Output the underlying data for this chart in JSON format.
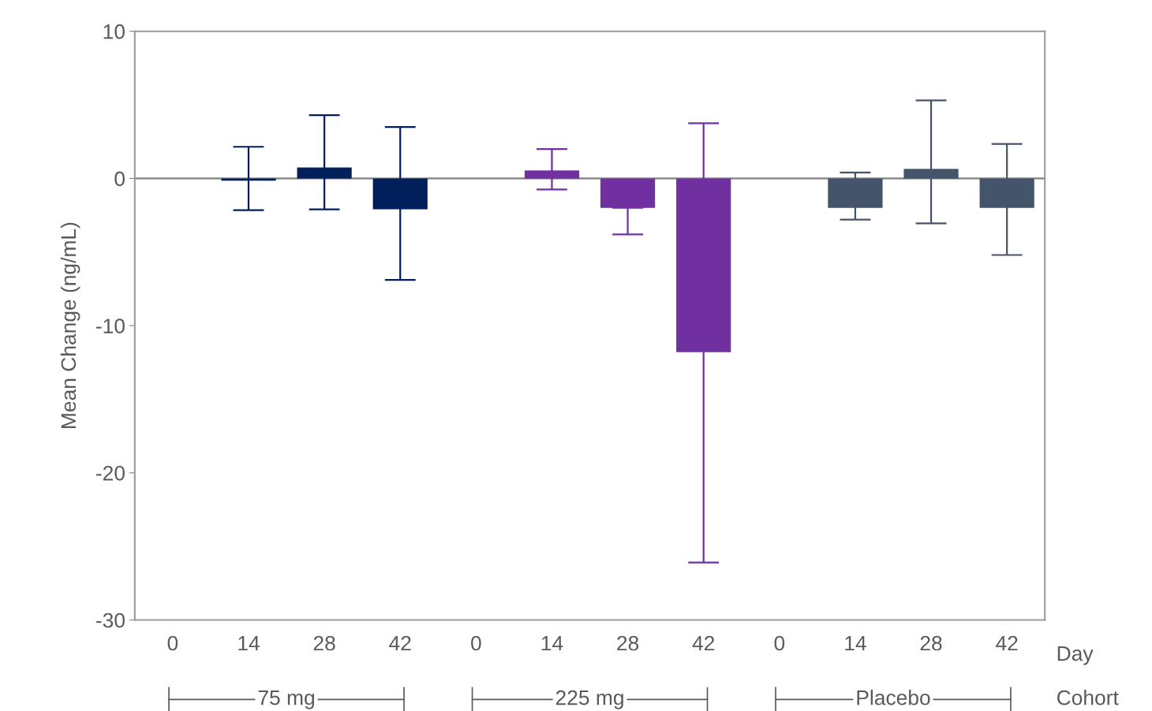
{
  "chart_data": {
    "type": "bar",
    "ylabel": "Mean Change (ng/mL)",
    "categories": [
      "0",
      "14",
      "28",
      "42",
      "0",
      "14",
      "28",
      "42",
      "0",
      "14",
      "28",
      "42"
    ],
    "values": [
      null,
      -0.15,
      0.75,
      -2.1,
      null,
      0.55,
      -2.0,
      -11.8,
      null,
      -2.0,
      0.65,
      -2.0
    ],
    "colors": [
      "#001f5b",
      "#001f5b",
      "#001f5b",
      "#001f5b",
      "#7030a0",
      "#7030a0",
      "#7030a0",
      "#7030a0",
      "#44546a",
      "#44546a",
      "#44546a",
      "#44546a"
    ],
    "errors": [
      null,
      [
        -2.15,
        2.15
      ],
      [
        -2.1,
        4.3
      ],
      [
        -6.9,
        3.5
      ],
      null,
      [
        -0.75,
        2.0
      ],
      [
        -3.8,
        -2.0
      ],
      [
        -26.1,
        3.75
      ],
      null,
      [
        -2.8,
        0.4
      ],
      [
        -3.05,
        5.3
      ],
      [
        -5.2,
        2.35
      ]
    ],
    "ylim": [
      -30,
      10
    ],
    "yticks": [
      {
        "value": -30,
        "label": "-30"
      },
      {
        "value": -20,
        "label": "-20"
      },
      {
        "value": -10,
        "label": "-10"
      },
      0,
      10
    ],
    "ref_lines": [
      {
        "axis": "y",
        "value": 0,
        "color": "#808080"
      }
    ],
    "annotations": [
      "75 mg",
      "225 mg",
      "Placebo",
      "Day",
      "Cohort"
    ],
    "grid": false,
    "legend": false
  }
}
